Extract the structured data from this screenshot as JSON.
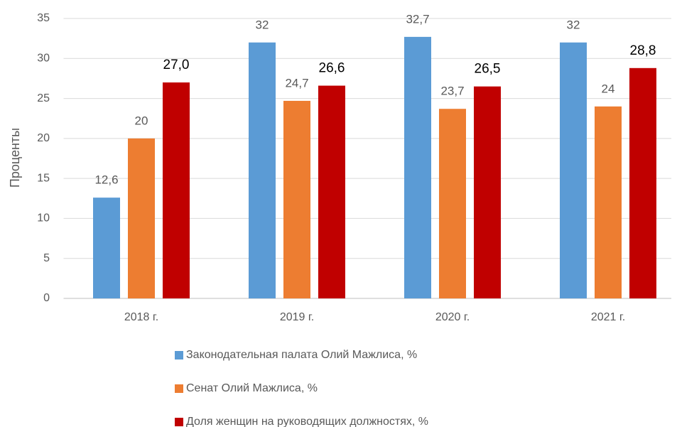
{
  "chart_data": {
    "type": "bar",
    "y_label": "Проценты",
    "categories": [
      "2018 г.",
      "2019 г.",
      "2020 г.",
      "2021 г."
    ],
    "series": [
      {
        "name": "Законодательная палата Олий Мажлиса, %",
        "color": "#5b9bd5",
        "values": [
          12.6,
          32,
          32.7,
          32
        ],
        "value_labels": [
          "12,6",
          "32",
          "32,7",
          "32"
        ]
      },
      {
        "name": "Сенат Олий Мажлиса, %",
        "color": "#ed7d31",
        "values": [
          20,
          24.7,
          23.7,
          24
        ],
        "value_labels": [
          "20",
          "24,7",
          "23,7",
          "24"
        ]
      },
      {
        "name": "Доля женщин на руководящих должностях, %",
        "color": "#c00000",
        "values": [
          27.0,
          26.6,
          26.5,
          28.8
        ],
        "value_labels": [
          "27,0",
          "26,6",
          "26,5",
          "28,8"
        ]
      }
    ],
    "ylim": [
      0,
      35
    ],
    "yticks": [
      0,
      5,
      10,
      15,
      20,
      25,
      30,
      35
    ],
    "grid": true
  }
}
